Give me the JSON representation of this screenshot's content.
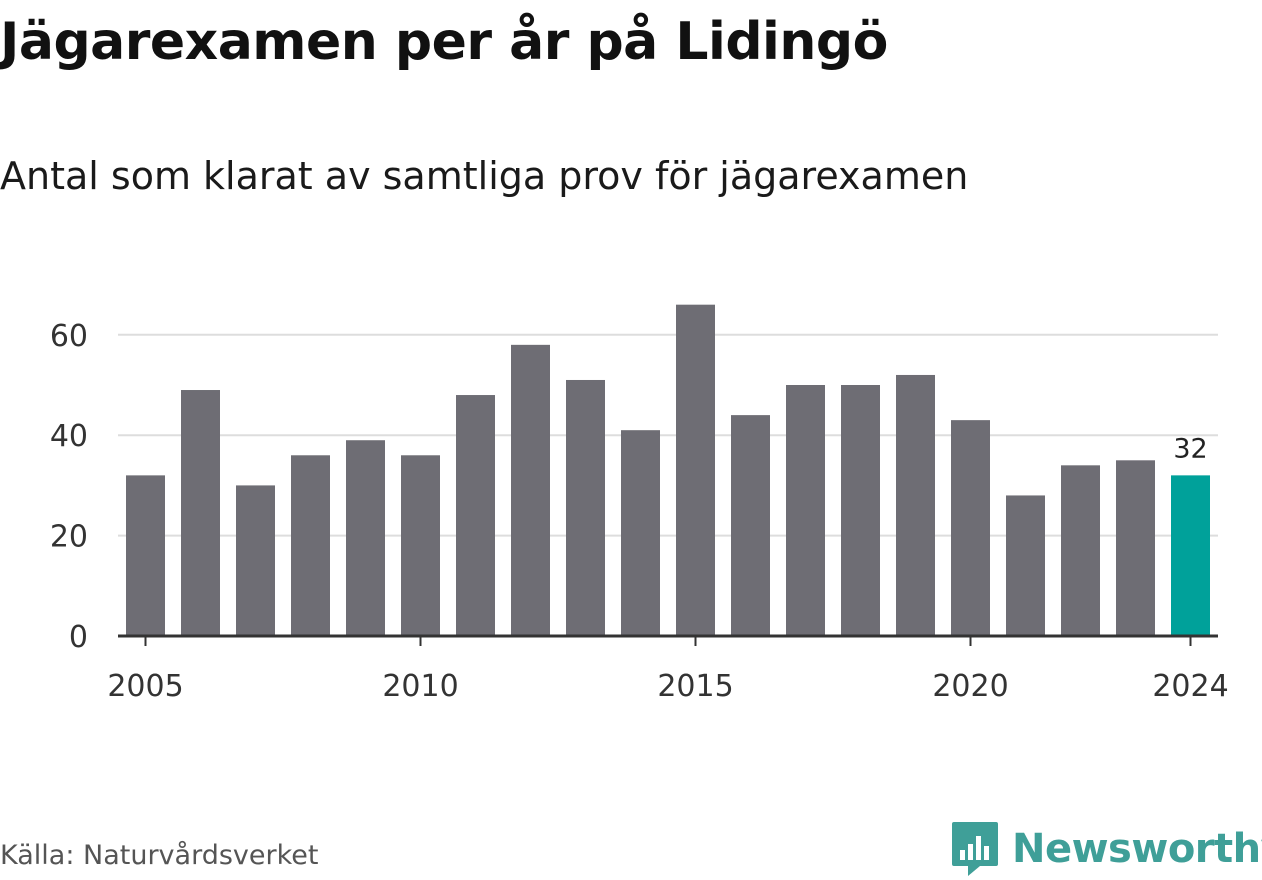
{
  "title": "Jägarexamen per år på Lidingö",
  "subtitle": "Antal som klarat av samtliga prov för jägarexamen",
  "source": "Källa: Naturvårdsverket",
  "brand": {
    "name": "Newsworthy",
    "icon": "newsworthy-logo-icon",
    "color": "#3f9f98"
  },
  "colors": {
    "bar": "#6e6d74",
    "highlight": "#00a19a",
    "grid": "#dddddd",
    "axis": "#333333"
  },
  "chart_data": {
    "type": "bar",
    "title": "Jägarexamen per år på Lidingö",
    "subtitle": "Antal som klarat av samtliga prov för jägarexamen",
    "categories": [
      2005,
      2006,
      2007,
      2008,
      2009,
      2010,
      2011,
      2012,
      2013,
      2014,
      2015,
      2016,
      2017,
      2018,
      2019,
      2020,
      2021,
      2022,
      2023,
      2024
    ],
    "values": [
      32,
      49,
      30,
      36,
      39,
      36,
      48,
      58,
      51,
      41,
      66,
      44,
      50,
      50,
      52,
      43,
      28,
      34,
      35,
      32
    ],
    "highlight_index": 19,
    "data_labels": [
      {
        "index": 19,
        "text": "32"
      }
    ],
    "xticks": [
      "2005",
      "2010",
      "2015",
      "2020",
      "2024"
    ],
    "yticks": [
      "0",
      "20",
      "40",
      "60"
    ],
    "ylim": [
      0,
      70
    ],
    "grid": true,
    "legend": "none"
  }
}
